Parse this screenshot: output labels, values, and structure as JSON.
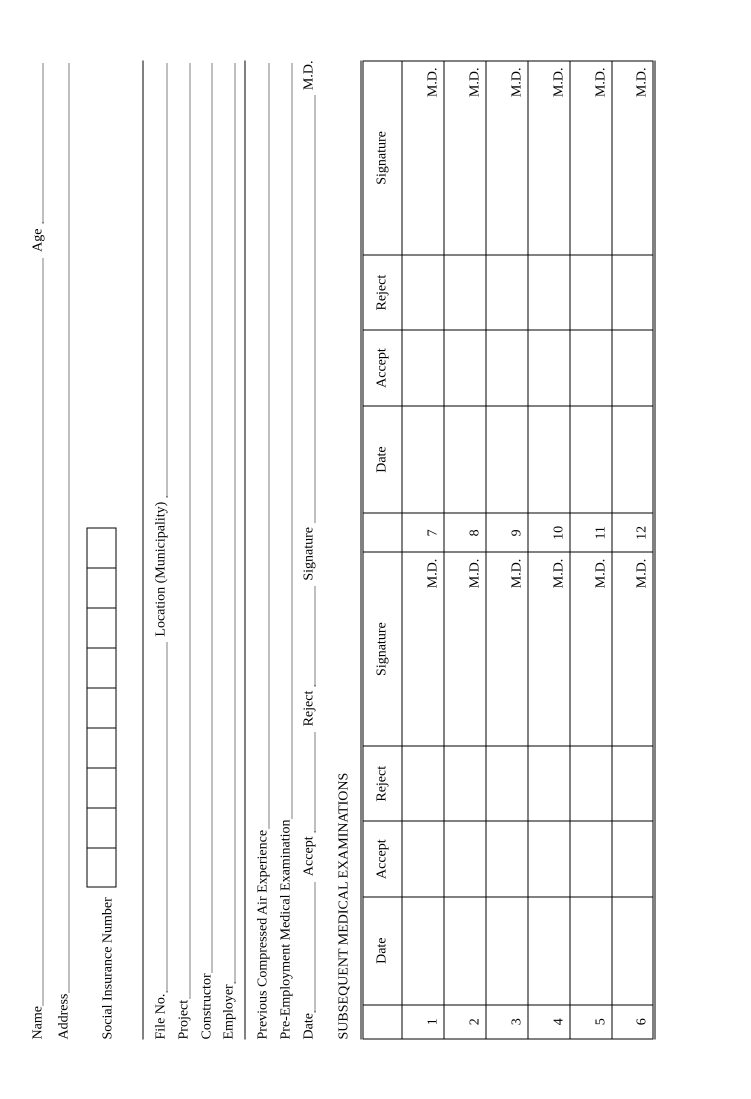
{
  "header": {
    "name_label": "Name",
    "age_label": "Age",
    "address_label": "Address",
    "sin_label": "Social Insurance Number",
    "sin_box_count": 9
  },
  "file": {
    "fileno_label": "File No.",
    "location_label": "Location (Municipality)",
    "project_label": "Project",
    "constructor_label": "Constructor",
    "employer_label": "Employer"
  },
  "exam": {
    "prev_exp_label": "Previous Compressed Air Experience",
    "preemp_label": "Pre-Employment Medical Examination",
    "date_label": "Date",
    "accept_label": "Accept",
    "reject_label": "Reject",
    "signature_label": "Signature",
    "md_suffix": "M.D."
  },
  "section": {
    "title": "SUBSEQUENT MEDICAL EXAMINATIONS"
  },
  "table": {
    "headers": {
      "date": "Date",
      "accept": "Accept",
      "reject": "Reject",
      "signature": "Signature"
    },
    "md": "M.D.",
    "left_nums": [
      "1",
      "2",
      "3",
      "4",
      "5",
      "6"
    ],
    "right_nums": [
      "7",
      "8",
      "9",
      "10",
      "11",
      "12"
    ]
  }
}
